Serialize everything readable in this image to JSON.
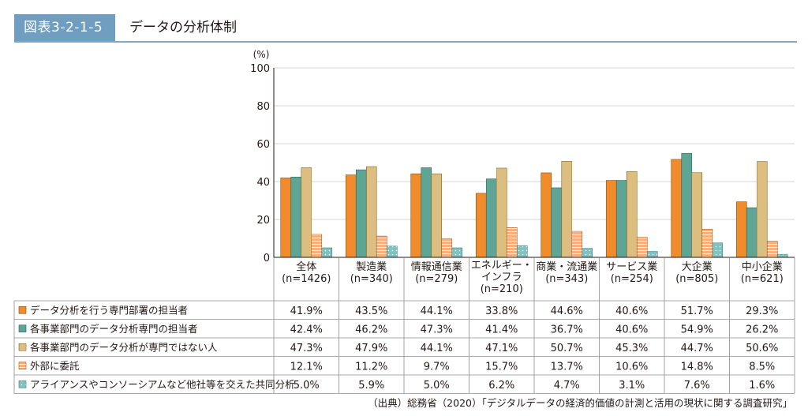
{
  "figure": {
    "number": "図表3-2-1-5",
    "title": "データの分析体制"
  },
  "source": "（出典）総務省（2020）「デジタルデータの経済的価値の計測と活用の現状に関する調査研究」",
  "colors": {
    "accent": "#6f9ec0",
    "series": [
      "#f08c2c",
      "#5fa596",
      "#f3d99a",
      "#f6b07d",
      "#7fc2c0"
    ]
  },
  "chart_data": {
    "type": "bar",
    "ylabel": "(%)",
    "ylim": [
      0,
      100
    ],
    "yticks": [
      0,
      20,
      40,
      60,
      80,
      100
    ],
    "grid": true,
    "legend": "table-left",
    "categories": [
      [
        "全体",
        "(n=1426)"
      ],
      [
        "製造業",
        "(n=340)"
      ],
      [
        "情報通信業",
        "(n=279)"
      ],
      [
        "エネルギー・",
        "インフラ",
        "(n=210)"
      ],
      [
        "商業・流通業",
        "(n=343)"
      ],
      [
        "サービス業",
        "(n=254)"
      ],
      [
        "大企業",
        "(n=805)"
      ],
      [
        "中小企業",
        "(n=621)"
      ]
    ],
    "series": [
      {
        "name": "データ分析を行う専門部署の担当者",
        "values": [
          41.9,
          43.5,
          44.1,
          33.8,
          44.6,
          40.6,
          51.7,
          29.3
        ],
        "labels": [
          "41.9%",
          "43.5%",
          "44.1%",
          "33.8%",
          "44.6%",
          "40.6%",
          "51.7%",
          "29.3%"
        ]
      },
      {
        "name": "各事業部門のデータ分析専門の担当者",
        "values": [
          42.4,
          46.2,
          47.3,
          41.4,
          36.7,
          40.6,
          54.9,
          26.2
        ],
        "labels": [
          "42.4%",
          "46.2%",
          "47.3%",
          "41.4%",
          "36.7%",
          "40.6%",
          "54.9%",
          "26.2%"
        ]
      },
      {
        "name": "各事業部門のデータ分析が専門ではない人",
        "values": [
          47.3,
          47.9,
          44.1,
          47.1,
          50.7,
          45.3,
          44.7,
          50.6
        ],
        "labels": [
          "47.3%",
          "47.9%",
          "44.1%",
          "47.1%",
          "50.7%",
          "45.3%",
          "44.7%",
          "50.6%"
        ]
      },
      {
        "name": "外部に委託",
        "values": [
          12.1,
          11.2,
          9.7,
          15.7,
          13.7,
          10.6,
          14.8,
          8.5
        ],
        "labels": [
          "12.1%",
          "11.2%",
          "9.7%",
          "15.7%",
          "13.7%",
          "10.6%",
          "14.8%",
          "8.5%"
        ]
      },
      {
        "name": "アライアンスやコンソーシアムなど他社等を交えた共同分析",
        "values": [
          5.0,
          5.9,
          5.0,
          6.2,
          4.7,
          3.1,
          7.6,
          1.6
        ],
        "labels": [
          "5.0%",
          "5.9%",
          "5.0%",
          "6.2%",
          "4.7%",
          "3.1%",
          "7.6%",
          "1.6%"
        ]
      }
    ]
  }
}
